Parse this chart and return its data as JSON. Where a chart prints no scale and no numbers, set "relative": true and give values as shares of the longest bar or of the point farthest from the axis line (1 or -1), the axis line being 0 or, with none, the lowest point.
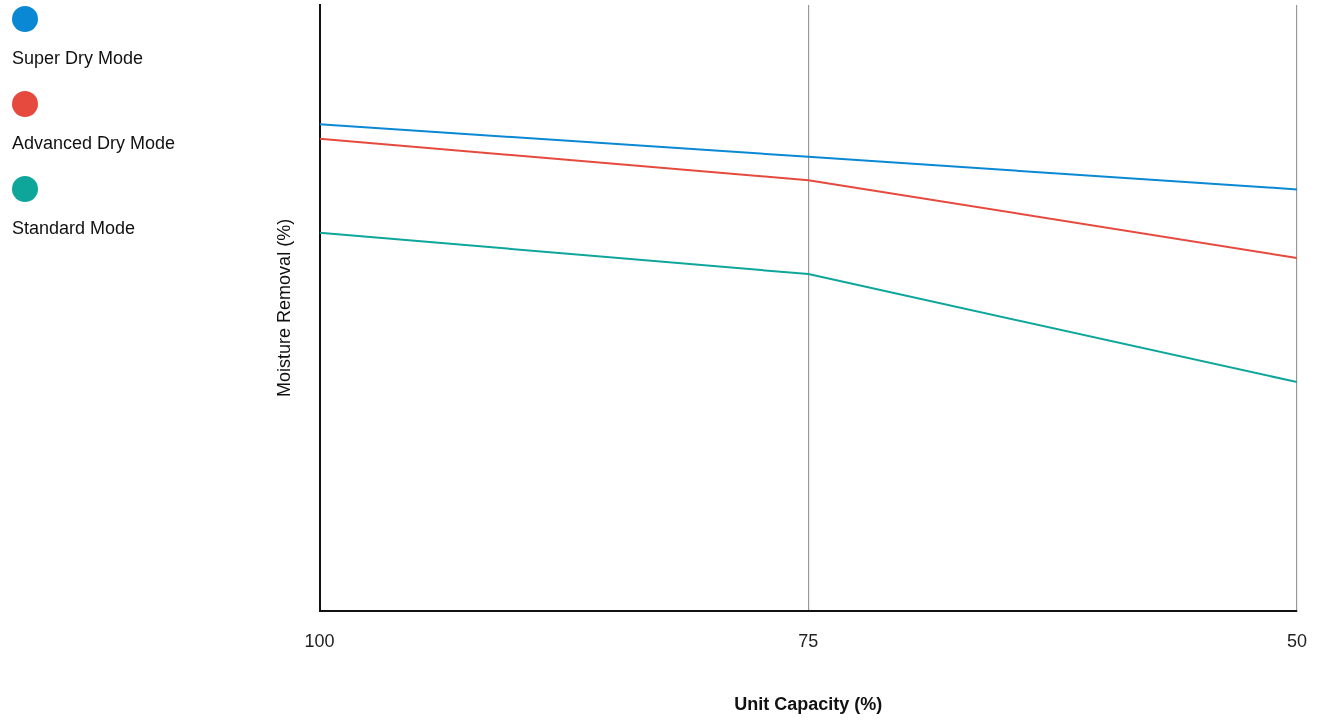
{
  "chart_data": {
    "type": "line",
    "xlabel": "Unit Capacity (%)",
    "ylabel": "Moisture Removal (%)",
    "relative": true,
    "x": [
      100,
      75,
      50
    ],
    "xlim": [
      100,
      50
    ],
    "xticks": [
      100,
      75,
      50
    ],
    "grid": "x",
    "legend": "left",
    "marker": "none",
    "line_style": "solid",
    "series": [
      {
        "name": "Super Dry Mode",
        "color": "#0a88d4",
        "values": [
          1,
          0.933,
          0.866
        ]
      },
      {
        "name": "Advanced Dry Mode",
        "color": "#e64a3e",
        "values": [
          0.97,
          0.885,
          0.725
        ]
      },
      {
        "name": "Standard Mode",
        "color": "#0ea69a",
        "values": [
          0.777,
          0.692,
          0.47
        ]
      }
    ]
  }
}
